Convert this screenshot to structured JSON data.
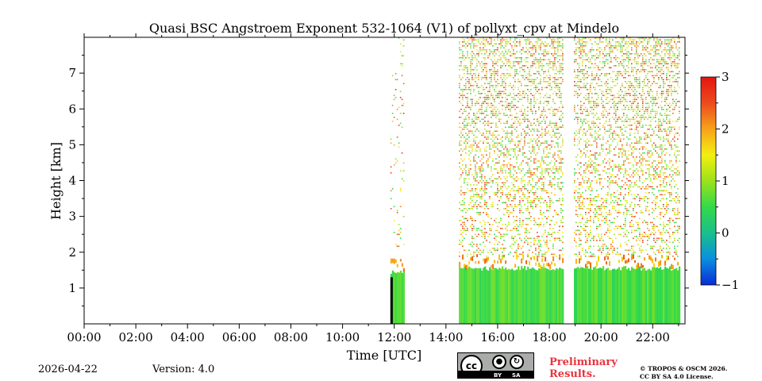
{
  "chart_data": {
    "type": "heatmap",
    "title": "Quasi BSC Angstroem Exponent 532-1064 (V1) of pollyxt_cpv at Mindelo",
    "xlabel": "Time [UTC]",
    "ylabel": "Height [km]",
    "xlim_hours": [
      0,
      23.25
    ],
    "ylim_km": [
      0,
      8
    ],
    "x_ticks": [
      "00:00",
      "02:00",
      "04:00",
      "06:00",
      "08:00",
      "10:00",
      "12:00",
      "14:00",
      "16:00",
      "18:00",
      "20:00",
      "22:00"
    ],
    "x_tick_hours": [
      0,
      2,
      4,
      6,
      8,
      10,
      12,
      14,
      16,
      18,
      20,
      22
    ],
    "y_ticks": [
      "1",
      "2",
      "3",
      "4",
      "5",
      "6",
      "7"
    ],
    "y_tick_values": [
      1,
      2,
      3,
      4,
      5,
      6,
      7
    ],
    "colorbar": {
      "min": -1,
      "max": 3,
      "ticks": [
        "3",
        "2",
        "1",
        "0",
        "−1"
      ],
      "tick_values": [
        3,
        2,
        1,
        0,
        -1
      ],
      "colormap": [
        "#0a2bd6",
        "#0b8fe0",
        "#19c08a",
        "#33d94a",
        "#9be21a",
        "#f4ef10",
        "#f7a21a",
        "#ec4a1e",
        "#e4160f"
      ]
    },
    "data_segments": [
      {
        "start_hour": 11.85,
        "end_hour": 12.4,
        "boundary_layer_top_km": 1.45,
        "noise_up_to_km": 8.0
      },
      {
        "start_hour": 14.5,
        "end_hour": 18.55,
        "boundary_layer_top_km": 1.55,
        "noise_up_to_km": 8.0
      },
      {
        "start_hour": 18.95,
        "end_hour": 23.05,
        "boundary_layer_top_km": 1.55,
        "noise_up_to_km": 8.0
      }
    ],
    "boundary_layer_value": 0.6,
    "aerosol_top_value": 2.0
  },
  "footer": {
    "date": "2026-04-22",
    "version": "Version: 4.0",
    "preliminary": [
      "Preliminary",
      "Results."
    ],
    "license": [
      "© TROPOS & OSCM 2026.",
      "CC BY SA 4.0 License."
    ],
    "badge_cc": "cc",
    "badge_by": "BY",
    "badge_sa": "SA"
  }
}
